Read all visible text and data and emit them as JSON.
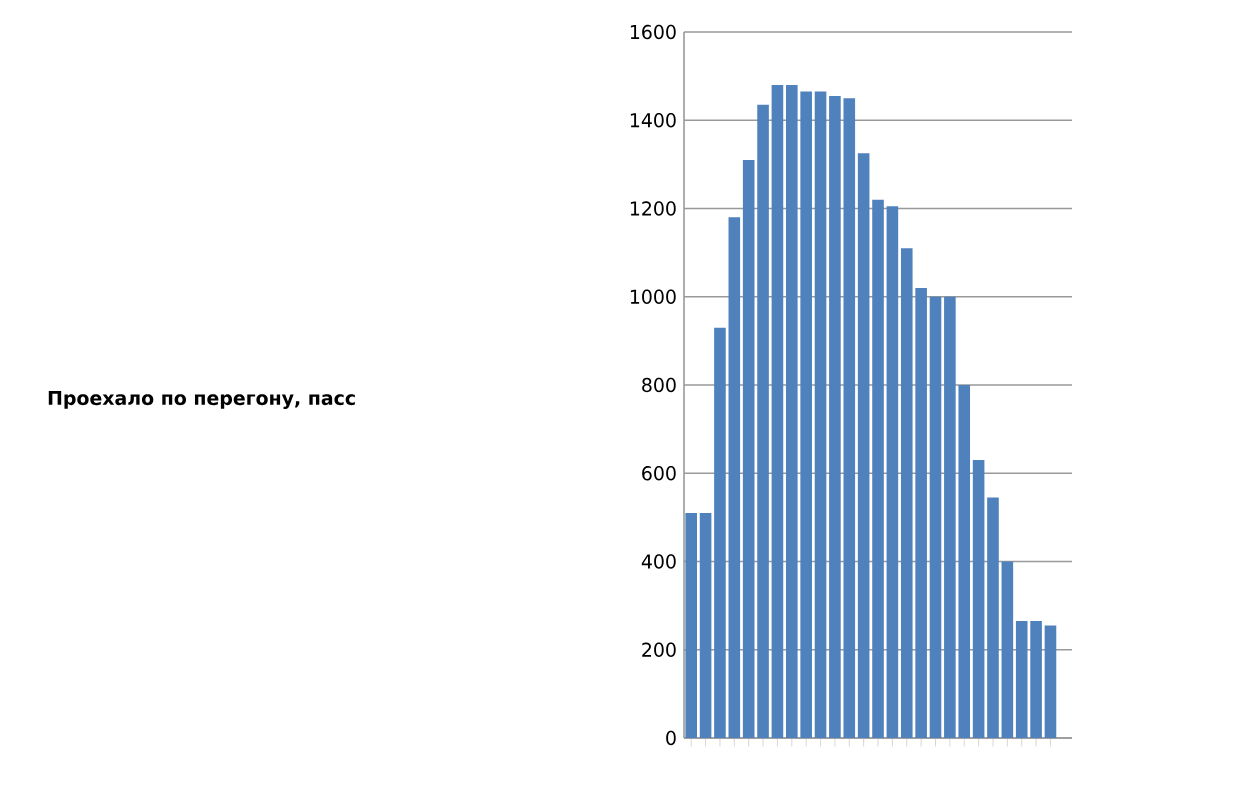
{
  "chart_data": {
    "type": "bar",
    "annotations": [
      "Проехало по перегону, пасс"
    ],
    "categories": [
      null,
      null,
      null,
      null,
      null,
      null,
      null,
      null,
      null,
      null,
      null,
      null,
      null,
      null,
      null,
      null,
      null,
      null,
      null,
      null,
      null,
      null,
      null,
      null,
      null,
      null
    ],
    "values": [
      510,
      510,
      930,
      1180,
      1310,
      1435,
      1480,
      1480,
      1465,
      1465,
      1455,
      1450,
      1325,
      1220,
      1205,
      1110,
      1020,
      1000,
      1000,
      800,
      630,
      545,
      400,
      265,
      265,
      255
    ],
    "color": "#4f81bd",
    "ylim": [
      0,
      1600
    ],
    "yticks": [
      0,
      200,
      400,
      600,
      800,
      1000,
      1200,
      1400,
      1600
    ],
    "grid": "y"
  }
}
